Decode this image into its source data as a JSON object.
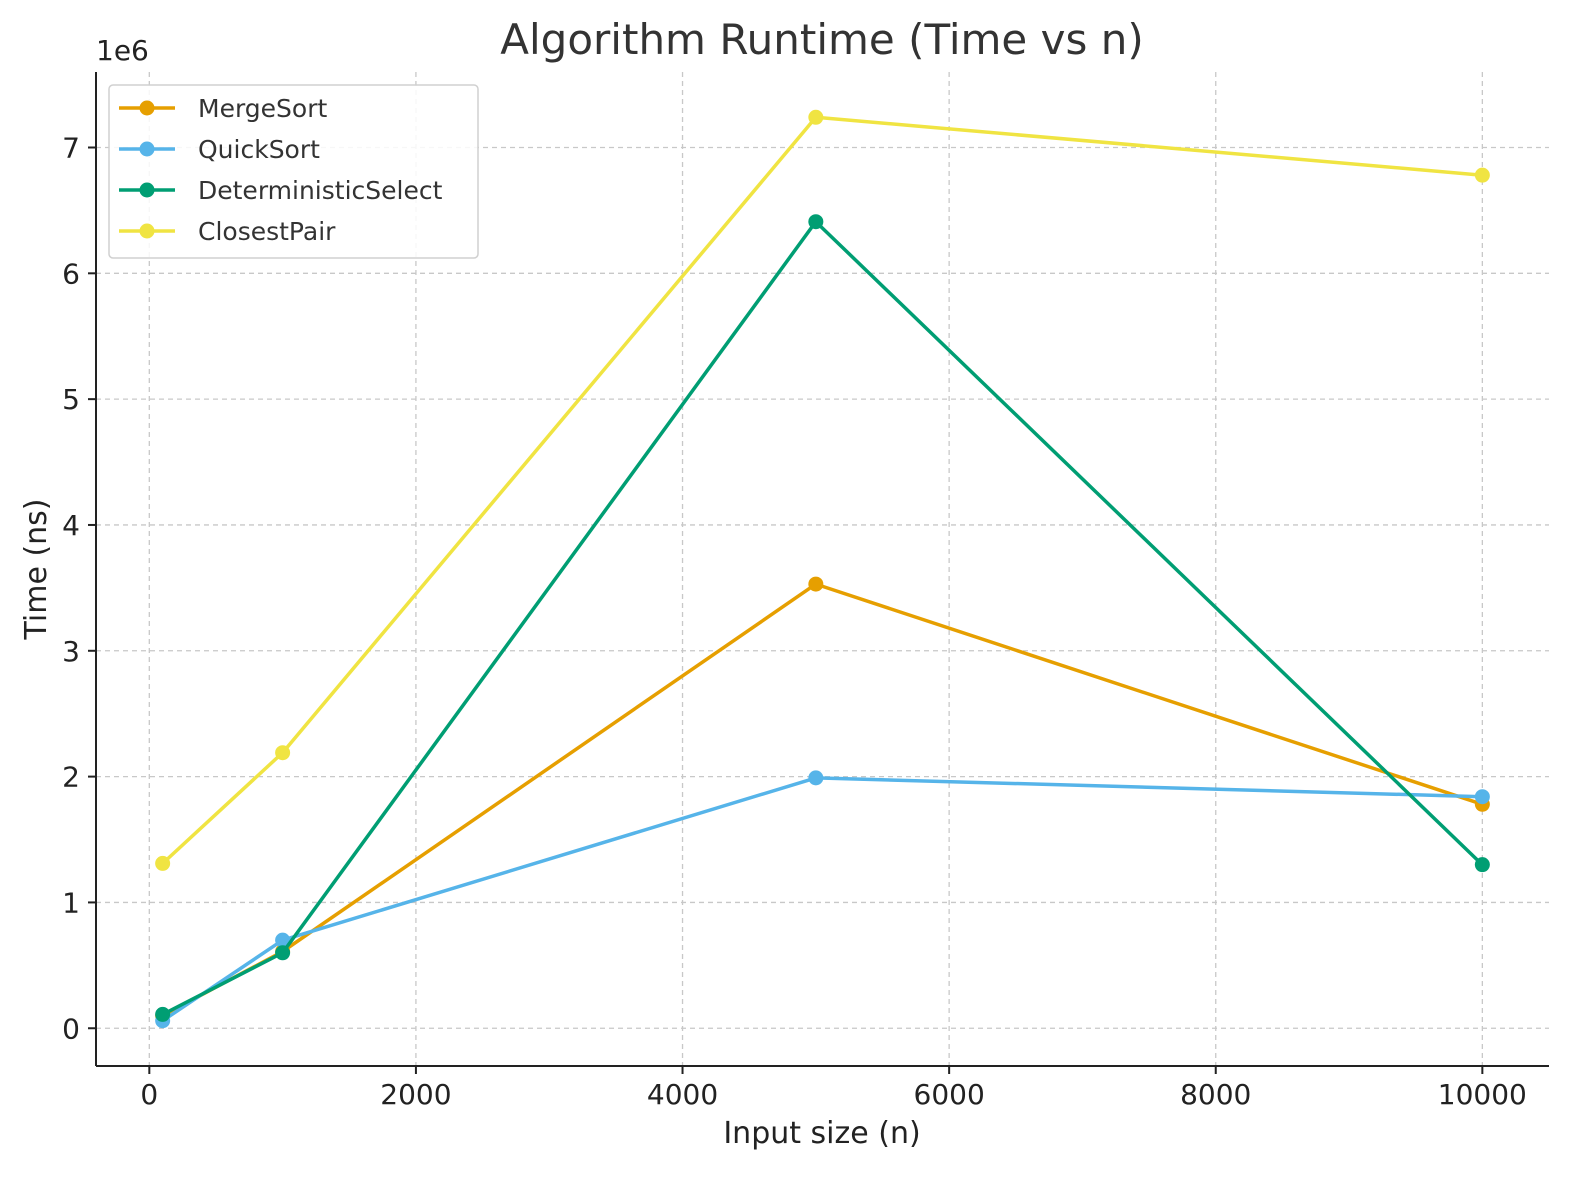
{
  "chart_data": {
    "type": "line",
    "title": "Algorithm Runtime (Time vs n)",
    "xlabel": "Input size (n)",
    "ylabel": "Time (ns)",
    "y_offset_label": "1e6",
    "xlim": [
      -400,
      10500
    ],
    "ylim": [
      -300000,
      7600000
    ],
    "x_ticks": [
      0,
      2000,
      4000,
      6000,
      8000,
      10000
    ],
    "x_tick_labels": [
      "0",
      "2000",
      "4000",
      "6000",
      "8000",
      "10000"
    ],
    "y_ticks": [
      0,
      1000000,
      2000000,
      3000000,
      4000000,
      5000000,
      6000000,
      7000000
    ],
    "y_tick_labels": [
      "0",
      "1",
      "2",
      "3",
      "4",
      "5",
      "6",
      "7"
    ],
    "grid": true,
    "legend_position": "top-left",
    "x": [
      100,
      1000,
      5000,
      10000
    ],
    "series": [
      {
        "name": "MergeSort",
        "color": "#E69F00",
        "values": [
          100000,
          610000,
          3530000,
          1780000
        ]
      },
      {
        "name": "QuickSort",
        "color": "#56B4E9",
        "values": [
          60000,
          700000,
          1990000,
          1840000
        ]
      },
      {
        "name": "DeterministicSelect",
        "color": "#009E73",
        "values": [
          110000,
          600000,
          6410000,
          1300000
        ]
      },
      {
        "name": "ClosestPair",
        "color": "#F0E442",
        "values": [
          1310000,
          2190000,
          7240000,
          6780000
        ]
      }
    ]
  }
}
